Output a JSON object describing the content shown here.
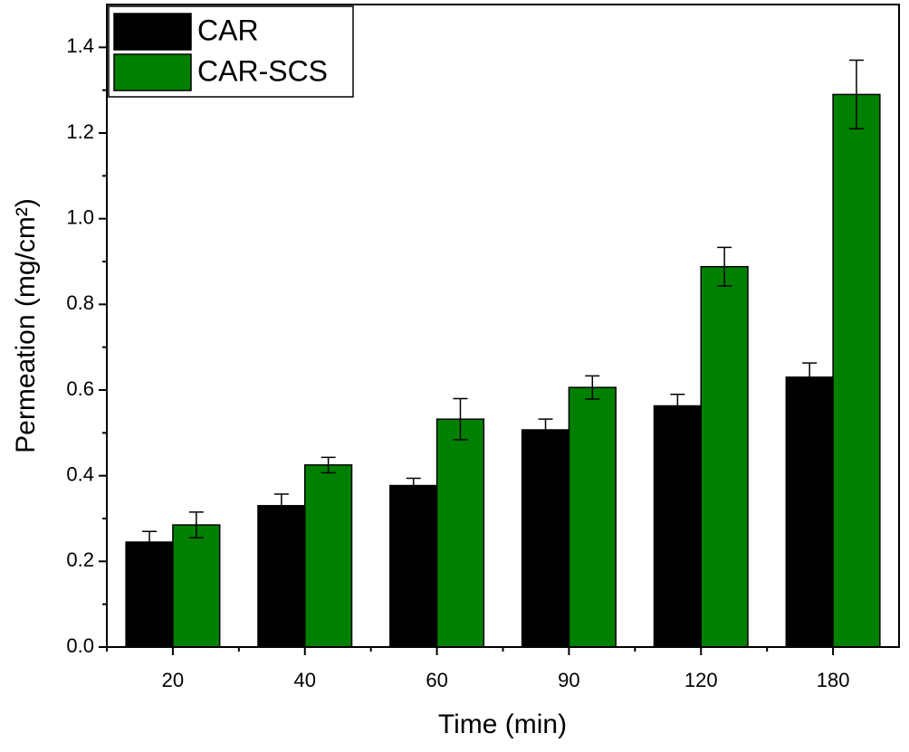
{
  "chart_data": {
    "type": "bar",
    "x_label": "Time (min)",
    "y_label": "Permeation (mg/cm²)",
    "categories": [
      "20",
      "40",
      "60",
      "90",
      "120",
      "180"
    ],
    "series": [
      {
        "name": "CAR",
        "color": "#000000",
        "values": [
          0.245,
          0.33,
          0.377,
          0.507,
          0.563,
          0.63
        ],
        "errors": [
          0.025,
          0.027,
          0.017,
          0.025,
          0.027,
          0.033
        ]
      },
      {
        "name": "CAR-SCS",
        "color": "#008000",
        "values": [
          0.285,
          0.425,
          0.532,
          0.606,
          0.888,
          1.29
        ],
        "errors": [
          0.03,
          0.018,
          0.048,
          0.027,
          0.045,
          0.08
        ]
      }
    ],
    "ylim": [
      0,
      1.5
    ],
    "yticks": [
      {
        "value": 0,
        "label": "0.0"
      },
      {
        "value": 0.2,
        "label": "0.2"
      },
      {
        "value": 0.4,
        "label": "0.4"
      },
      {
        "value": 0.6,
        "label": "0.6"
      },
      {
        "value": 0.8,
        "label": "0.8"
      },
      {
        "value": 1.0,
        "label": "1.0"
      },
      {
        "value": 1.2,
        "label": "1.2"
      },
      {
        "value": 1.4,
        "label": "1.4"
      }
    ],
    "legend": "upper-left",
    "error_bars": true
  }
}
